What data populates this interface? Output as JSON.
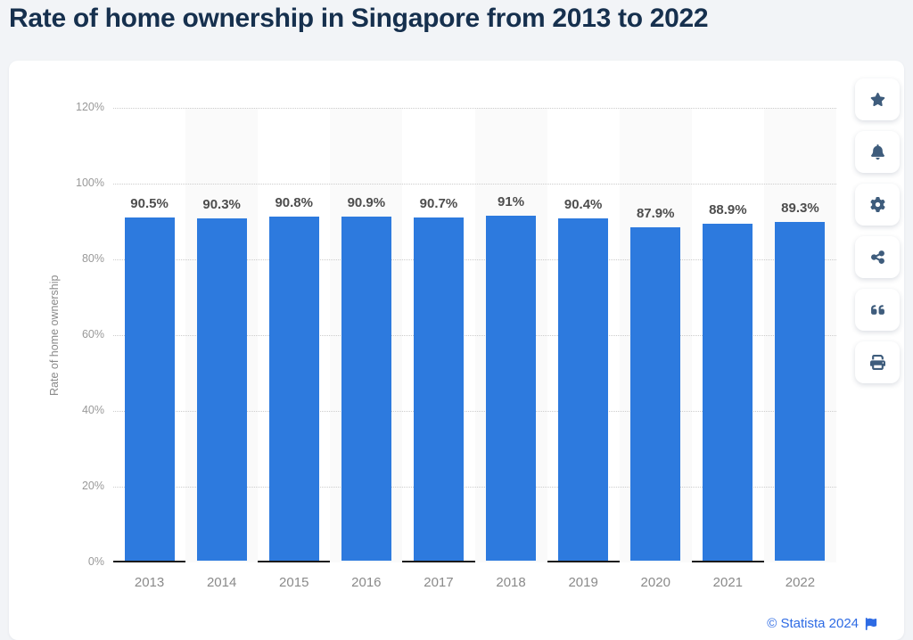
{
  "page": {
    "title": "Rate of home ownership in Singapore from 2013 to 2022",
    "background_color": "#f2f4f7",
    "title_color": "#16304e"
  },
  "toolbar": {
    "icon_color": "#3e5c7c",
    "buttons": [
      {
        "name": "favorite",
        "icon": "star-icon"
      },
      {
        "name": "alerts",
        "icon": "bell-icon"
      },
      {
        "name": "settings",
        "icon": "gear-icon"
      },
      {
        "name": "share",
        "icon": "share-icon"
      },
      {
        "name": "cite",
        "icon": "quote-icon"
      },
      {
        "name": "print",
        "icon": "printer-icon"
      }
    ]
  },
  "footer": {
    "copyright": "© Statista 2024",
    "link_color": "#2e6be4",
    "flag_icon": "flag-icon"
  },
  "chart_data": {
    "type": "bar",
    "title": "Rate of home ownership in Singapore from 2013 to 2022",
    "categories": [
      "2013",
      "2014",
      "2015",
      "2016",
      "2017",
      "2018",
      "2019",
      "2020",
      "2021",
      "2022"
    ],
    "values": [
      90.5,
      90.3,
      90.8,
      90.9,
      90.7,
      91,
      90.4,
      87.9,
      88.9,
      89.3
    ],
    "value_labels": [
      "90.5%",
      "90.3%",
      "90.8%",
      "90.9%",
      "90.7%",
      "91%",
      "90.4%",
      "87.9%",
      "88.9%",
      "89.3%"
    ],
    "xlabel": "",
    "ylabel": "Rate of home ownership",
    "ylim": [
      0,
      120
    ],
    "ytick_step": 20,
    "yticks": [
      "0%",
      "20%",
      "40%",
      "60%",
      "80%",
      "100%",
      "120%"
    ],
    "grid": "horizontal-dotted",
    "legend": "none",
    "bar_color": "#2d7ade",
    "stripe_color": "#fafafa",
    "value_label_color": "#4d4d4d",
    "tick_color": "#999999"
  }
}
